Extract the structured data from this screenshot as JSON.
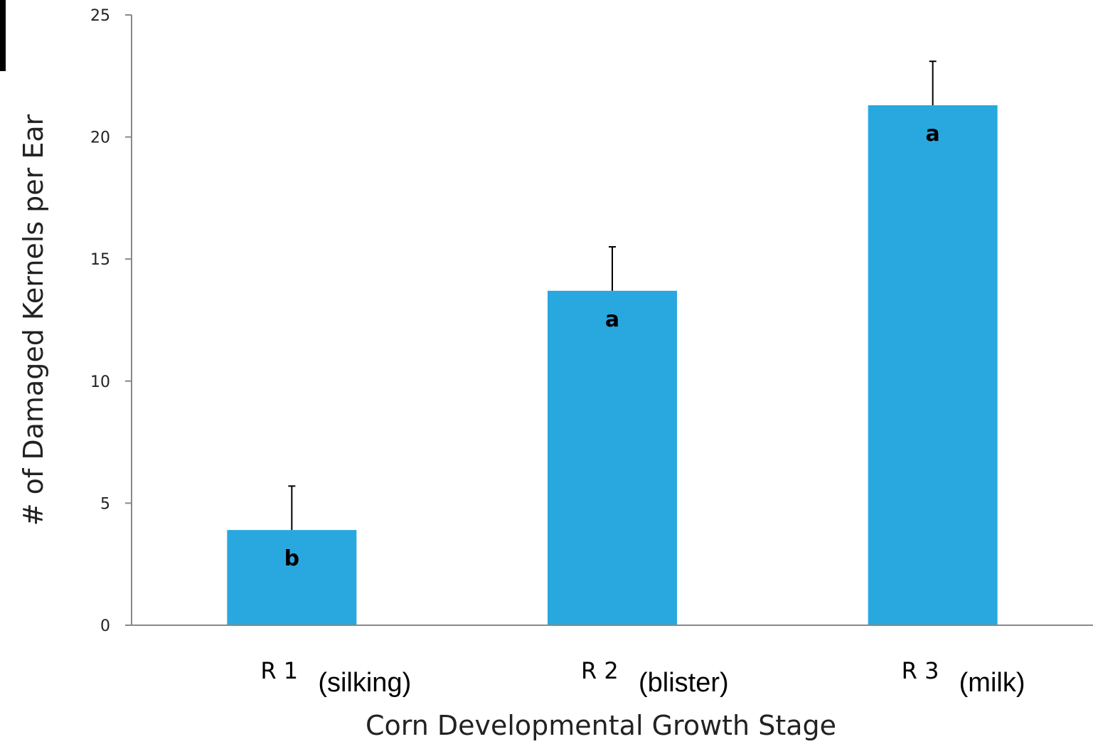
{
  "chart_data": {
    "type": "bar",
    "categories": [
      "R 1",
      "R 2",
      "R 3"
    ],
    "stage_names": [
      "(silking)",
      "(blister)",
      "(milk)"
    ],
    "values": [
      3.9,
      13.7,
      21.3
    ],
    "error_upper": [
      5.7,
      15.5,
      23.1
    ],
    "significance_letters": [
      "b",
      "a",
      "a"
    ],
    "xlabel": "Corn Developmental Growth Stage",
    "ylabel": "# of Damaged Kernels per Ear",
    "ylim": [
      0,
      25
    ],
    "yticks": [
      0,
      5,
      10,
      15,
      20,
      25
    ],
    "grid": false,
    "colors": {
      "bar": "#29a8e0",
      "axis": "#888888",
      "error_bar": "#000000"
    }
  }
}
